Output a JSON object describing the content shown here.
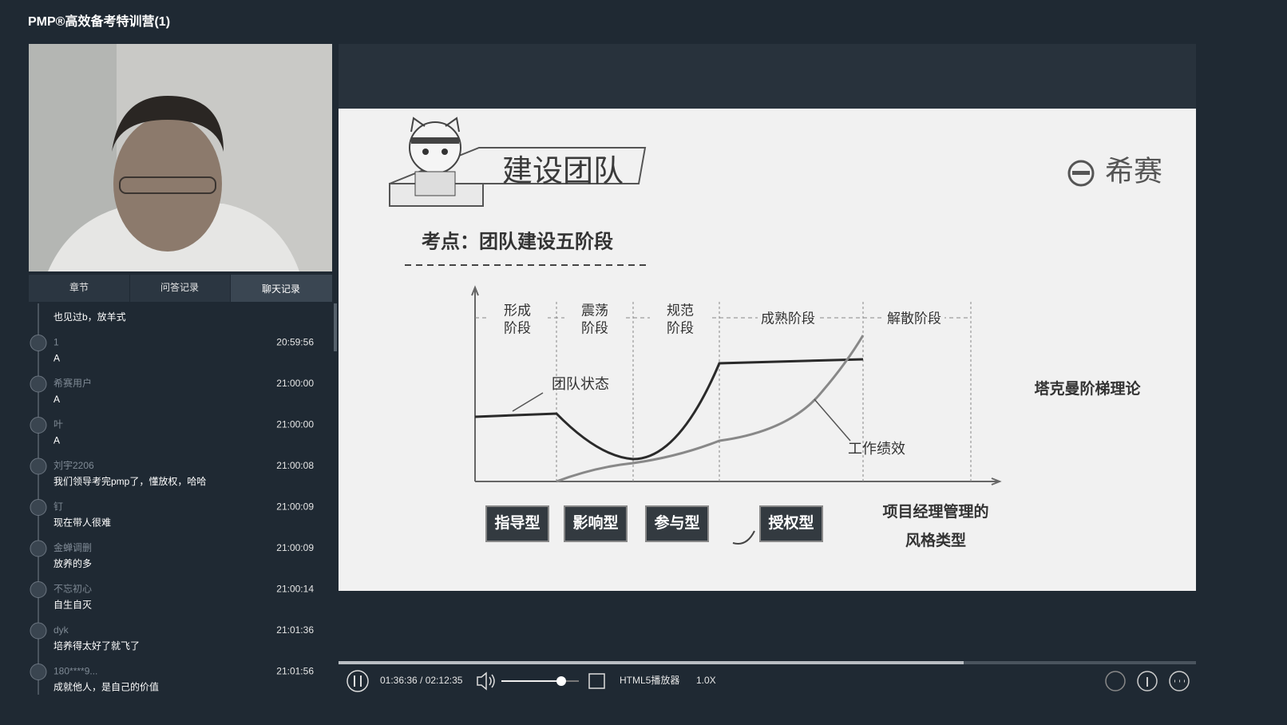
{
  "header": {
    "title": "PMP®高效备考特训营(1)"
  },
  "tabs": [
    "章节",
    "问答记录",
    "聊天记录"
  ],
  "chat": [
    {
      "text": "也见过b，放羊式"
    },
    {
      "user": "1",
      "time": "20:59:56",
      "text": "A"
    },
    {
      "user": "希赛用户",
      "time": "21:00:00",
      "text": "A"
    },
    {
      "user": "叶",
      "time": "21:00:00",
      "text": "A"
    },
    {
      "user": "刘宇2206",
      "time": "21:00:08",
      "text": "我们领导考完pmp了，懂放权，哈哈"
    },
    {
      "user": "钉",
      "time": "21:00:09",
      "text": "现在带人很难"
    },
    {
      "user": "金蝉调删",
      "time": "21:00:09",
      "text": "放养的多"
    },
    {
      "user": "不忘初心",
      "time": "21:00:14",
      "text": "自生自灭"
    },
    {
      "user": "dyk",
      "time": "21:01:36",
      "text": "培养得太好了就飞了"
    },
    {
      "user": "180****9...",
      "time": "21:01:56",
      "text": "成就他人，是自己的价值"
    }
  ],
  "slide": {
    "title": "建设团队",
    "brand": "希赛",
    "subtitle": "考点：团队建设五阶段",
    "stages": [
      [
        "形成",
        "阶段"
      ],
      [
        "震荡",
        "阶段"
      ],
      [
        "规范",
        "阶段"
      ],
      [
        "成熟阶段"
      ],
      [
        "解散阶段"
      ]
    ],
    "curve_labels": [
      "团队状态",
      "工作绩效"
    ],
    "theory": "塔克曼阶梯理论",
    "styles": [
      "指导型",
      "影响型",
      "参与型",
      "授权型"
    ],
    "styles_caption": [
      "项目经理管理的",
      "风格类型"
    ]
  },
  "player": {
    "time": "01:36:36 / 02:12:35",
    "player_name": "HTML5播放器",
    "speed": "1.0X"
  }
}
